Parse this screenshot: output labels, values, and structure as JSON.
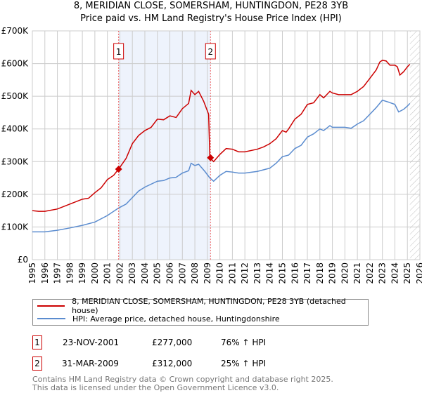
{
  "title": "8, MERIDIAN CLOSE, SOMERSHAM, HUNTINGDON, PE28 3YB",
  "subtitle": "Price paid vs. HM Land Registry's House Price Index (HPI)",
  "chart_data": {
    "type": "line",
    "ylim": [
      0,
      700000
    ],
    "xlim": [
      1995,
      2026
    ],
    "yticks": [
      {
        "v": 0,
        "label": "£0"
      },
      {
        "v": 100000,
        "label": "£100K"
      },
      {
        "v": 200000,
        "label": "£200K"
      },
      {
        "v": 300000,
        "label": "£300K"
      },
      {
        "v": 400000,
        "label": "£400K"
      },
      {
        "v": 500000,
        "label": "£500K"
      },
      {
        "v": 600000,
        "label": "£600K"
      },
      {
        "v": 700000,
        "label": "£700K"
      }
    ],
    "xticks": [
      "1995",
      "1996",
      "1997",
      "1998",
      "1999",
      "2000",
      "2001",
      "2002",
      "2003",
      "2004",
      "2005",
      "2006",
      "2007",
      "2008",
      "2009",
      "2010",
      "2011",
      "2012",
      "2013",
      "2014",
      "2015",
      "2016",
      "2017",
      "2018",
      "2019",
      "2020",
      "2021",
      "2022",
      "2023",
      "2024",
      "2025",
      "2026"
    ],
    "grid": true,
    "shaded_range": [
      2001.9,
      2009.25
    ],
    "forecast_hatch_from": 2025.2,
    "series": [
      {
        "name": "8, MERIDIAN CLOSE, SOMERSHAM, HUNTINGDON, PE28 3YB (detached house)",
        "color": "#cc0000",
        "x": [
          1995,
          1995.5,
          1996,
          1997,
          1998,
          1999,
          1999.5,
          2000,
          2000.5,
          2001,
          2001.5,
          2001.9,
          2002.5,
          2003,
          2003.5,
          2004,
          2004.5,
          2005,
          2005.5,
          2006,
          2006.5,
          2007,
          2007.5,
          2007.7,
          2008,
          2008.3,
          2008.7,
          2009.1,
          2009.2,
          2009.5,
          2010,
          2010.5,
          2011,
          2011.5,
          2012,
          2013,
          2013.5,
          2014,
          2014.5,
          2015,
          2015.3,
          2015.5,
          2016,
          2016.5,
          2017,
          2017.5,
          2018,
          2018.3,
          2018.8,
          2019,
          2019.5,
          2020,
          2020.5,
          2021,
          2021.5,
          2022,
          2022.5,
          2022.8,
          2023,
          2023.3,
          2023.6,
          2024,
          2024.2,
          2024.4,
          2024.7,
          2025,
          2025.2
        ],
        "y": [
          150000,
          148000,
          148000,
          155000,
          170000,
          185000,
          188000,
          205000,
          220000,
          245000,
          258000,
          277000,
          310000,
          355000,
          380000,
          395000,
          405000,
          430000,
          428000,
          440000,
          435000,
          462000,
          478000,
          518000,
          505000,
          515000,
          485000,
          445000,
          312000,
          300000,
          322000,
          340000,
          338000,
          330000,
          330000,
          338000,
          345000,
          355000,
          370000,
          395000,
          390000,
          400000,
          430000,
          445000,
          475000,
          480000,
          505000,
          495000,
          515000,
          510000,
          505000,
          505000,
          505000,
          515000,
          530000,
          555000,
          580000,
          605000,
          610000,
          608000,
          595000,
          595000,
          590000,
          565000,
          575000,
          590000,
          598000
        ]
      },
      {
        "name": "HPI: Average price, detached house, Huntingdonshire",
        "color": "#5b8ccf",
        "x": [
          1995,
          1996,
          1997,
          1998,
          1999,
          2000,
          2001,
          2001.9,
          2002.5,
          2003,
          2003.5,
          2004,
          2005,
          2005.5,
          2006,
          2006.5,
          2007,
          2007.5,
          2007.7,
          2008,
          2008.3,
          2008.8,
          2009.2,
          2009.5,
          2010,
          2010.5,
          2011,
          2011.5,
          2012,
          2013,
          2014,
          2014.5,
          2015,
          2015.5,
          2016,
          2016.5,
          2017,
          2017.5,
          2018,
          2018.3,
          2018.8,
          2019,
          2020,
          2020.5,
          2021,
          2021.5,
          2022,
          2022.5,
          2023,
          2023.5,
          2024,
          2024.3,
          2024.7,
          2025,
          2025.2
        ],
        "y": [
          85000,
          85000,
          90000,
          97000,
          105000,
          115000,
          135000,
          158000,
          170000,
          190000,
          210000,
          222000,
          240000,
          242000,
          250000,
          252000,
          265000,
          272000,
          295000,
          288000,
          292000,
          270000,
          250000,
          240000,
          258000,
          270000,
          268000,
          265000,
          265000,
          270000,
          280000,
          295000,
          315000,
          320000,
          340000,
          350000,
          375000,
          385000,
          400000,
          395000,
          410000,
          405000,
          405000,
          402000,
          415000,
          425000,
          445000,
          465000,
          488000,
          482000,
          475000,
          452000,
          460000,
          470000,
          478000
        ]
      }
    ],
    "sales": [
      {
        "id": "1",
        "x": 2001.9,
        "y": 277000,
        "date": "23-NOV-2001",
        "price": "£277,000",
        "hpi": "76% ↑ HPI"
      },
      {
        "id": "2",
        "x": 2009.25,
        "y": 312000,
        "date": "31-MAR-2009",
        "price": "£312,000",
        "hpi": "25% ↑ HPI"
      }
    ]
  },
  "footer": {
    "line1": "Contains HM Land Registry data © Crown copyright and database right 2025.",
    "line2": "This data is licensed under the Open Government Licence v3.0."
  }
}
